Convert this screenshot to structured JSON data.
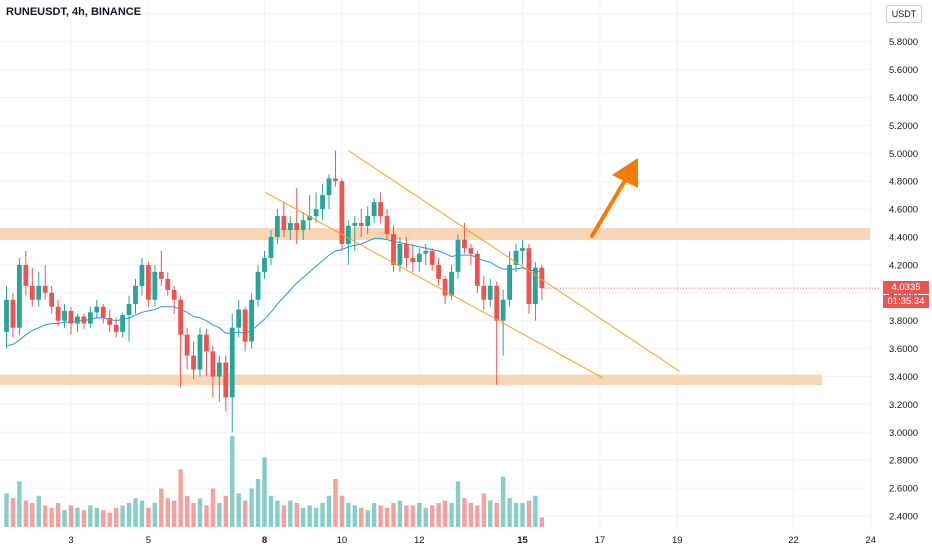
{
  "header": {
    "symbol_line": "RUNEUSDT, 4h, BINANCE",
    "currency": "USDT"
  },
  "price_labels": {
    "last_price": "4.0335",
    "countdown": "01:35:34"
  },
  "colors": {
    "up": "#26a69a",
    "down": "#ef5350",
    "ma": "#2196f3",
    "zone": "#f9cfa8",
    "channel": "#f7a21b",
    "arrow": "#f57c00",
    "grid": "#f0f3fa",
    "axis_text": "#131722"
  },
  "chart_data": {
    "type": "candlestick",
    "symbol": "RUNEUSDT",
    "interval": "4h",
    "exchange": "BINANCE",
    "y_ticks": [
      "2.4000",
      "2.6000",
      "2.8000",
      "3.0000",
      "3.2000",
      "3.4000",
      "3.6000",
      "3.8000",
      "4.0000",
      "4.2000",
      "4.4000",
      "4.6000",
      "4.8000",
      "5.0000",
      "5.2000",
      "5.4000",
      "5.6000",
      "5.8000",
      "6.0000"
    ],
    "x_ticks": [
      "3",
      "5",
      "8",
      "10",
      "12",
      "15",
      "17",
      "19",
      "22",
      "24"
    ],
    "ylim": [
      2.28,
      6.08
    ],
    "last_price": 4.0335,
    "candles": [
      {
        "o": 3.72,
        "h": 4.05,
        "l": 3.6,
        "c": 3.95
      },
      {
        "o": 3.95,
        "h": 4.0,
        "l": 3.68,
        "c": 3.75
      },
      {
        "o": 3.75,
        "h": 4.25,
        "l": 3.7,
        "c": 4.2
      },
      {
        "o": 4.2,
        "h": 4.3,
        "l": 3.98,
        "c": 4.05
      },
      {
        "o": 4.05,
        "h": 4.18,
        "l": 3.9,
        "c": 3.95
      },
      {
        "o": 3.95,
        "h": 4.15,
        "l": 3.9,
        "c": 4.05
      },
      {
        "o": 4.05,
        "h": 4.2,
        "l": 3.95,
        "c": 4.0
      },
      {
        "o": 4.0,
        "h": 4.05,
        "l": 3.85,
        "c": 3.9
      },
      {
        "o": 3.9,
        "h": 3.95,
        "l": 3.76,
        "c": 3.8
      },
      {
        "o": 3.8,
        "h": 3.92,
        "l": 3.75,
        "c": 3.87
      },
      {
        "o": 3.87,
        "h": 3.9,
        "l": 3.7,
        "c": 3.78
      },
      {
        "o": 3.78,
        "h": 3.85,
        "l": 3.72,
        "c": 3.83
      },
      {
        "o": 3.83,
        "h": 3.85,
        "l": 3.74,
        "c": 3.78
      },
      {
        "o": 3.78,
        "h": 3.9,
        "l": 3.75,
        "c": 3.86
      },
      {
        "o": 3.86,
        "h": 3.95,
        "l": 3.82,
        "c": 3.9
      },
      {
        "o": 3.9,
        "h": 3.92,
        "l": 3.78,
        "c": 3.82
      },
      {
        "o": 3.82,
        "h": 3.88,
        "l": 3.72,
        "c": 3.77
      },
      {
        "o": 3.77,
        "h": 3.82,
        "l": 3.68,
        "c": 3.72
      },
      {
        "o": 3.72,
        "h": 3.86,
        "l": 3.68,
        "c": 3.84
      },
      {
        "o": 3.84,
        "h": 3.98,
        "l": 3.65,
        "c": 3.92
      },
      {
        "o": 3.92,
        "h": 4.1,
        "l": 3.85,
        "c": 4.05
      },
      {
        "o": 4.05,
        "h": 4.25,
        "l": 3.98,
        "c": 4.2
      },
      {
        "o": 4.2,
        "h": 4.22,
        "l": 3.9,
        "c": 3.95
      },
      {
        "o": 3.95,
        "h": 4.2,
        "l": 3.9,
        "c": 4.15
      },
      {
        "o": 4.15,
        "h": 4.3,
        "l": 4.05,
        "c": 4.1
      },
      {
        "o": 4.1,
        "h": 4.15,
        "l": 3.98,
        "c": 4.02
      },
      {
        "o": 4.02,
        "h": 4.05,
        "l": 3.85,
        "c": 3.95
      },
      {
        "o": 3.95,
        "h": 3.98,
        "l": 3.32,
        "c": 3.7
      },
      {
        "o": 3.7,
        "h": 3.75,
        "l": 3.45,
        "c": 3.55
      },
      {
        "o": 3.55,
        "h": 3.65,
        "l": 3.38,
        "c": 3.45
      },
      {
        "o": 3.45,
        "h": 3.75,
        "l": 3.4,
        "c": 3.7
      },
      {
        "o": 3.7,
        "h": 3.74,
        "l": 3.4,
        "c": 3.58
      },
      {
        "o": 3.58,
        "h": 3.62,
        "l": 3.25,
        "c": 3.4
      },
      {
        "o": 3.4,
        "h": 3.55,
        "l": 3.22,
        "c": 3.5
      },
      {
        "o": 3.5,
        "h": 3.55,
        "l": 3.15,
        "c": 3.25
      },
      {
        "o": 3.25,
        "h": 3.85,
        "l": 3.0,
        "c": 3.75
      },
      {
        "o": 3.75,
        "h": 3.95,
        "l": 3.68,
        "c": 3.88
      },
      {
        "o": 3.88,
        "h": 3.9,
        "l": 3.58,
        "c": 3.65
      },
      {
        "o": 3.65,
        "h": 4.0,
        "l": 3.6,
        "c": 3.95
      },
      {
        "o": 3.95,
        "h": 4.2,
        "l": 3.9,
        "c": 4.15
      },
      {
        "o": 4.15,
        "h": 4.3,
        "l": 4.1,
        "c": 4.25
      },
      {
        "o": 4.25,
        "h": 4.45,
        "l": 4.2,
        "c": 4.4
      },
      {
        "o": 4.4,
        "h": 4.6,
        "l": 4.35,
        "c": 4.55
      },
      {
        "o": 4.55,
        "h": 4.65,
        "l": 4.4,
        "c": 4.45
      },
      {
        "o": 4.45,
        "h": 4.55,
        "l": 4.38,
        "c": 4.5
      },
      {
        "o": 4.5,
        "h": 4.75,
        "l": 4.35,
        "c": 4.45
      },
      {
        "o": 4.45,
        "h": 4.58,
        "l": 4.38,
        "c": 4.52
      },
      {
        "o": 4.52,
        "h": 4.7,
        "l": 4.45,
        "c": 4.55
      },
      {
        "o": 4.55,
        "h": 4.72,
        "l": 4.5,
        "c": 4.6
      },
      {
        "o": 4.6,
        "h": 4.78,
        "l": 4.52,
        "c": 4.7
      },
      {
        "o": 4.7,
        "h": 4.85,
        "l": 4.6,
        "c": 4.82
      },
      {
        "o": 4.82,
        "h": 5.02,
        "l": 4.76,
        "c": 4.8
      },
      {
        "o": 4.8,
        "h": 4.82,
        "l": 4.3,
        "c": 4.35
      },
      {
        "o": 4.35,
        "h": 4.52,
        "l": 4.2,
        "c": 4.48
      },
      {
        "o": 4.48,
        "h": 4.55,
        "l": 4.3,
        "c": 4.5
      },
      {
        "o": 4.5,
        "h": 4.6,
        "l": 4.4,
        "c": 4.48
      },
      {
        "o": 4.48,
        "h": 4.62,
        "l": 4.42,
        "c": 4.55
      },
      {
        "o": 4.55,
        "h": 4.68,
        "l": 4.5,
        "c": 4.65
      },
      {
        "o": 4.65,
        "h": 4.72,
        "l": 4.5,
        "c": 4.55
      },
      {
        "o": 4.55,
        "h": 4.6,
        "l": 4.38,
        "c": 4.42
      },
      {
        "o": 4.42,
        "h": 4.48,
        "l": 4.15,
        "c": 4.2
      },
      {
        "o": 4.2,
        "h": 4.4,
        "l": 4.15,
        "c": 4.35
      },
      {
        "o": 4.35,
        "h": 4.4,
        "l": 4.18,
        "c": 4.25
      },
      {
        "o": 4.25,
        "h": 4.35,
        "l": 4.15,
        "c": 4.22
      },
      {
        "o": 4.22,
        "h": 4.32,
        "l": 4.15,
        "c": 4.28
      },
      {
        "o": 4.28,
        "h": 4.35,
        "l": 4.2,
        "c": 4.3
      },
      {
        "o": 4.3,
        "h": 4.32,
        "l": 4.16,
        "c": 4.2
      },
      {
        "o": 4.2,
        "h": 4.25,
        "l": 4.05,
        "c": 4.1
      },
      {
        "o": 4.1,
        "h": 4.12,
        "l": 3.92,
        "c": 3.98
      },
      {
        "o": 3.98,
        "h": 4.2,
        "l": 3.95,
        "c": 4.15
      },
      {
        "o": 4.15,
        "h": 4.42,
        "l": 4.1,
        "c": 4.38
      },
      {
        "o": 4.38,
        "h": 4.5,
        "l": 4.28,
        "c": 4.32
      },
      {
        "o": 4.32,
        "h": 4.35,
        "l": 4.2,
        "c": 4.28
      },
      {
        "o": 4.28,
        "h": 4.3,
        "l": 4.0,
        "c": 4.05
      },
      {
        "o": 4.05,
        "h": 4.12,
        "l": 3.88,
        "c": 3.95
      },
      {
        "o": 3.95,
        "h": 4.1,
        "l": 3.9,
        "c": 4.05
      },
      {
        "o": 4.05,
        "h": 4.08,
        "l": 3.34,
        "c": 3.8
      },
      {
        "o": 3.8,
        "h": 4.02,
        "l": 3.55,
        "c": 3.95
      },
      {
        "o": 3.95,
        "h": 4.3,
        "l": 3.9,
        "c": 4.2
      },
      {
        "o": 4.2,
        "h": 4.35,
        "l": 4.15,
        "c": 4.3
      },
      {
        "o": 4.3,
        "h": 4.38,
        "l": 4.2,
        "c": 4.32
      },
      {
        "o": 4.32,
        "h": 4.35,
        "l": 3.85,
        "c": 3.92
      },
      {
        "o": 3.92,
        "h": 4.22,
        "l": 3.8,
        "c": 4.18
      },
      {
        "o": 4.18,
        "h": 4.2,
        "l": 3.95,
        "c": 4.0335
      }
    ],
    "ma": [
      3.62,
      3.63,
      3.66,
      3.7,
      3.73,
      3.75,
      3.77,
      3.78,
      3.78,
      3.79,
      3.79,
      3.8,
      3.8,
      3.81,
      3.82,
      3.82,
      3.81,
      3.8,
      3.81,
      3.82,
      3.84,
      3.86,
      3.87,
      3.88,
      3.9,
      3.9,
      3.9,
      3.88,
      3.86,
      3.83,
      3.82,
      3.8,
      3.77,
      3.75,
      3.71,
      3.71,
      3.72,
      3.71,
      3.73,
      3.77,
      3.81,
      3.86,
      3.92,
      3.97,
      4.02,
      4.07,
      4.11,
      4.15,
      4.19,
      4.23,
      4.27,
      4.3,
      4.31,
      4.33,
      4.34,
      4.35,
      4.37,
      4.39,
      4.39,
      4.38,
      4.37,
      4.36,
      4.35,
      4.34,
      4.33,
      4.32,
      4.31,
      4.3,
      4.28,
      4.26,
      4.27,
      4.27,
      4.27,
      4.25,
      4.23,
      4.22,
      4.19,
      4.17,
      4.17,
      4.17,
      4.18,
      4.16,
      4.16,
      4.15
    ],
    "volume": [
      1.4,
      1.2,
      1.9,
      1.1,
      1.0,
      1.3,
      0.9,
      0.8,
      1.0,
      0.7,
      0.9,
      0.8,
      0.7,
      0.9,
      0.8,
      0.7,
      0.6,
      0.8,
      0.9,
      1.0,
      1.2,
      1.1,
      0.8,
      1.0,
      1.6,
      1.2,
      1.1,
      2.4,
      1.3,
      1.0,
      1.2,
      0.9,
      1.6,
      1.0,
      1.3,
      3.8,
      1.4,
      1.1,
      1.6,
      2.0,
      2.9,
      1.3,
      1.1,
      0.9,
      1.1,
      1.0,
      0.8,
      0.9,
      0.8,
      1.0,
      1.3,
      2.0,
      1.3,
      1.0,
      0.9,
      0.8,
      0.7,
      1.0,
      0.9,
      0.8,
      1.0,
      1.1,
      0.9,
      0.9,
      1.0,
      0.8,
      0.9,
      1.0,
      1.1,
      1.0,
      1.9,
      1.2,
      1.0,
      0.9,
      1.4,
      1.1,
      1.0,
      2.1,
      1.2,
      1.0,
      1.0,
      1.1,
      1.3,
      0.4
    ]
  },
  "drawings": {
    "resistance_zone": [
      4.4,
      4.45
    ],
    "support_zone": [
      3.36,
      3.4
    ],
    "channel_upper": [
      [
        53,
        5.02
      ],
      [
        92,
        3.88
      ]
    ],
    "channel_lower": [
      [
        44,
        4.67
      ],
      [
        83,
        3.42
      ]
    ]
  }
}
